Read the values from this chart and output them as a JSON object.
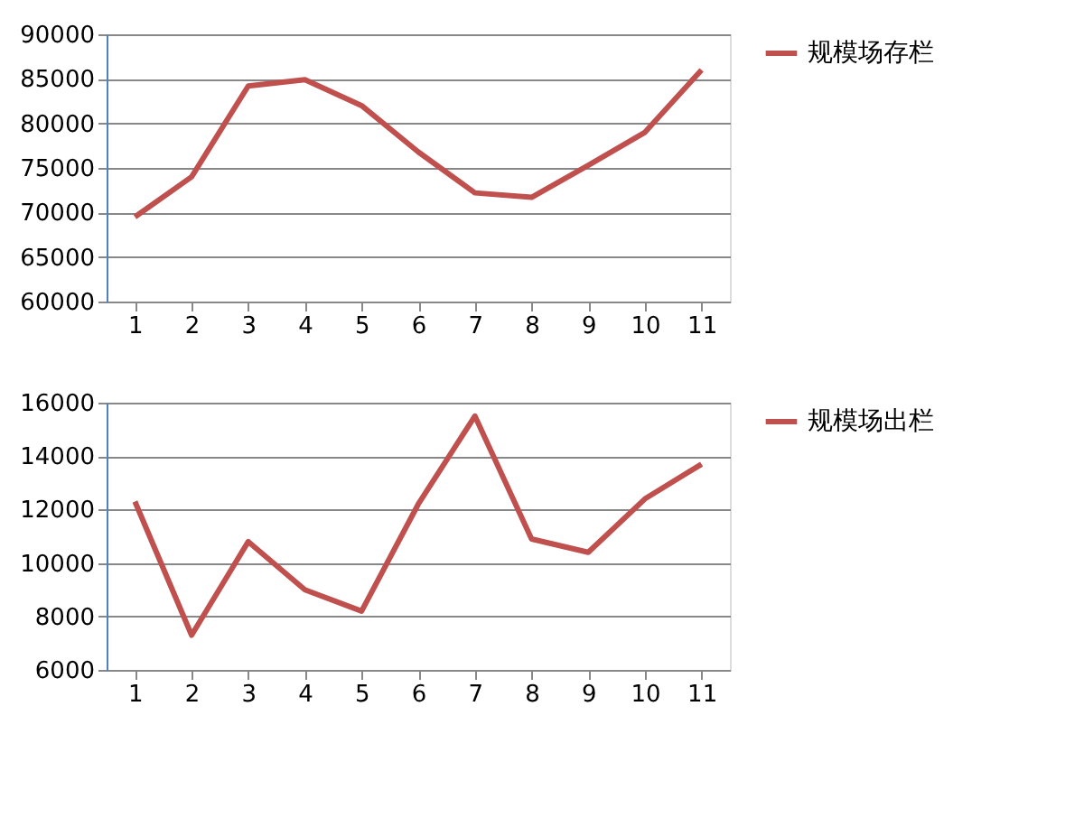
{
  "chart_data": [
    {
      "type": "line",
      "categories": [
        "1",
        "2",
        "3",
        "4",
        "5",
        "6",
        "7",
        "8",
        "9",
        "10",
        "11"
      ],
      "series": [
        {
          "name": "规模场存栏",
          "color": "#c0504d",
          "values": [
            69500,
            74000,
            84200,
            84900,
            82000,
            76800,
            72200,
            71700,
            75300,
            79000,
            86000
          ]
        }
      ],
      "ylim": [
        60000,
        90000
      ],
      "yticks": [
        60000,
        65000,
        70000,
        75000,
        80000,
        85000,
        90000
      ],
      "grid": "y",
      "legend": "right",
      "marker": "none",
      "line_style": "solid"
    },
    {
      "type": "line",
      "categories": [
        "1",
        "2",
        "3",
        "4",
        "5",
        "6",
        "7",
        "8",
        "9",
        "10",
        "11"
      ],
      "series": [
        {
          "name": "规模场出栏",
          "color": "#c0504d",
          "values": [
            12300,
            7300,
            10800,
            9000,
            8200,
            12200,
            15500,
            10900,
            10400,
            12400,
            13700
          ]
        }
      ],
      "ylim": [
        6000,
        16000
      ],
      "yticks": [
        6000,
        8000,
        10000,
        12000,
        14000,
        16000
      ],
      "grid": "y",
      "legend": "right",
      "marker": "none",
      "line_style": "solid"
    }
  ]
}
